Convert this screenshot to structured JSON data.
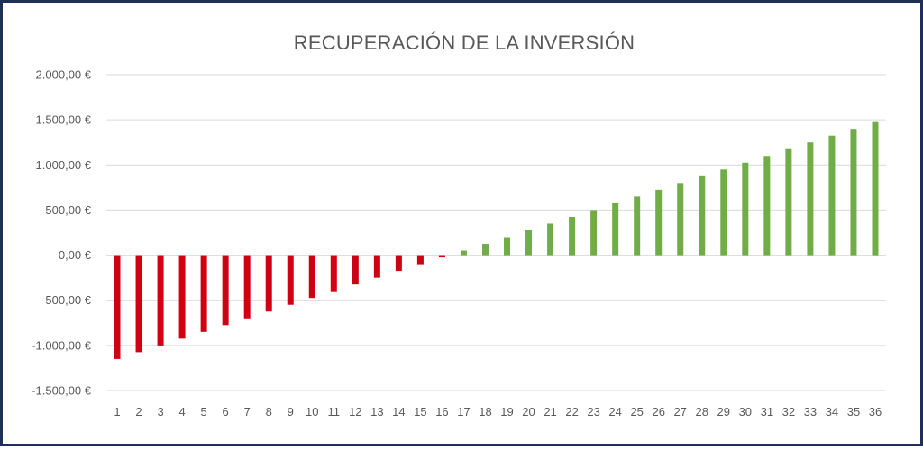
{
  "chart_data": {
    "type": "bar",
    "title": "RECUPERACIÓN DE LA INVERSIÓN",
    "xlabel": "",
    "ylabel": "",
    "categories": [
      "1",
      "2",
      "3",
      "4",
      "5",
      "6",
      "7",
      "8",
      "9",
      "10",
      "11",
      "12",
      "13",
      "14",
      "15",
      "16",
      "17",
      "18",
      "19",
      "20",
      "21",
      "22",
      "23",
      "24",
      "25",
      "26",
      "27",
      "28",
      "29",
      "30",
      "31",
      "32",
      "33",
      "34",
      "35",
      "36"
    ],
    "values": [
      -1150,
      -1075,
      -1000,
      -925,
      -850,
      -775,
      -700,
      -625,
      -550,
      -475,
      -400,
      -325,
      -250,
      -175,
      -100,
      -25,
      50,
      125,
      200,
      275,
      350,
      425,
      500,
      575,
      650,
      725,
      800,
      875,
      950,
      1025,
      1100,
      1175,
      1250,
      1325,
      1400,
      1475
    ],
    "ylim": [
      -1500,
      2000
    ],
    "yticks": [
      2000,
      1500,
      1000,
      500,
      0,
      -500,
      -1000,
      -1500
    ],
    "ytick_labels": [
      "2.000,00 €",
      "1.500,00 €",
      "1.000,00 €",
      "500,00 €",
      "0,00 €",
      "-500,00 €",
      "-1.000,00 €",
      "-1.500,00 €"
    ],
    "grid": true,
    "colors": {
      "negative": "#d00012",
      "positive": "#70ad47",
      "grid": "#d9d9d9",
      "text": "#595959",
      "border": "#1f2f5a"
    }
  }
}
